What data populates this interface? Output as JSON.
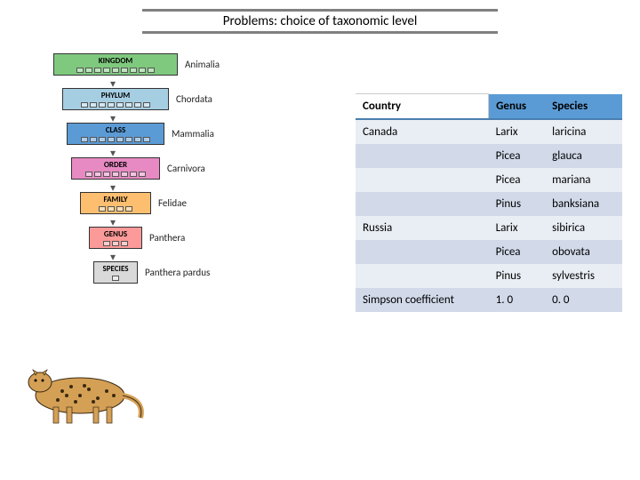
{
  "title": "Problems: choice of taxonomic level",
  "title_bar_color": "#808080",
  "taxonomy": {
    "levels": [
      {
        "name": "KINGDOM",
        "example": "Animalia",
        "bg": "#7fc97f",
        "width": 140,
        "dots": 9
      },
      {
        "name": "PHYLUM",
        "example": "Chordata",
        "bg": "#a6cee3",
        "width": 120,
        "dots": 8
      },
      {
        "name": "CLASS",
        "example": "Mammalia",
        "bg": "#5b9bd5",
        "width": 110,
        "dots": 8
      },
      {
        "name": "ORDER",
        "example": "Carnivora",
        "bg": "#e78ac3",
        "width": 100,
        "dots": 7
      },
      {
        "name": "FAMILY",
        "example": "Felidae",
        "bg": "#fdbf6f",
        "width": 80,
        "dots": 4
      },
      {
        "name": "GENUS",
        "example": "Panthera",
        "bg": "#fb9a99",
        "width": 60,
        "dots": 3
      },
      {
        "name": "SPECIES",
        "example": "Panthera pardus",
        "bg": "#d9d9d9",
        "width": 50,
        "dots": 1
      }
    ],
    "label_fontsize": 11,
    "level_fontsize": 9
  },
  "table": {
    "columns": [
      "Country",
      "Genus",
      "Species"
    ],
    "rows": [
      [
        "Canada",
        "Larix",
        "laricina"
      ],
      [
        "",
        "Picea",
        "glauca"
      ],
      [
        "",
        "Picea",
        "mariana"
      ],
      [
        "",
        "Pinus",
        "banksiana"
      ],
      [
        "Russia",
        "Larix",
        "sibirica"
      ],
      [
        "",
        "Picea",
        "obovata"
      ],
      [
        "",
        "Pinus",
        "sylvestris"
      ],
      [
        "Simpson coefficient",
        "1. 0",
        "0. 0"
      ]
    ],
    "header_bg": "#5b9bd5",
    "row_odd_bg": "#e9edf4",
    "row_even_bg": "#d2daea",
    "font_size": 13
  },
  "leopard_caption": "Panthera pardus",
  "leopard_fill": "#d4a056",
  "leopard_spot": "#3b2a12"
}
